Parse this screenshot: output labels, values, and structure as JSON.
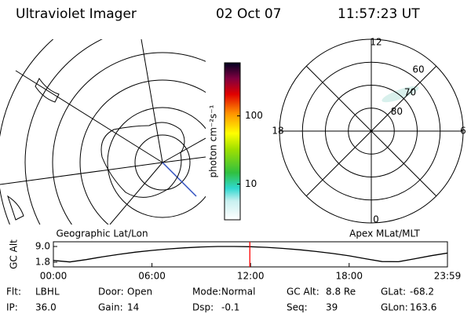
{
  "header": {
    "title": "Ultraviolet Imager",
    "date": "02 Oct 07",
    "time": "11:57:23 UT"
  },
  "geo_panel": {
    "label": "Geographic Lat/Lon"
  },
  "colorbar": {
    "unit_label": "photon cm⁻²s⁻¹",
    "log_scale": true,
    "clim": [
      3,
      600
    ],
    "ticks": [
      10,
      100
    ]
  },
  "mlt_panel": {
    "label": "Apex MLat/MLT",
    "rlim": [
      90,
      50
    ],
    "lat_rings": [
      60,
      70,
      80
    ],
    "mlt_labels": [
      12,
      18,
      6,
      0
    ]
  },
  "altitude_plot": {
    "type": "line",
    "y_label": "GC Alt",
    "color": "#000000",
    "marker_color": "#ff0000",
    "marker_x": 11.956,
    "x": [
      0,
      1,
      2,
      3,
      4,
      5,
      6,
      7,
      8,
      9,
      10,
      11,
      12,
      13,
      14,
      15,
      16,
      17,
      18,
      19,
      20,
      21,
      22,
      23,
      24
    ],
    "values": [
      2.6,
      1.9,
      3.0,
      4.3,
      5.4,
      6.4,
      7.2,
      7.9,
      8.4,
      8.8,
      9.0,
      9.0,
      8.9,
      8.6,
      8.1,
      7.5,
      6.7,
      5.8,
      4.7,
      3.4,
      2.1,
      2.0,
      3.4,
      4.8,
      6.0
    ],
    "xlim": [
      0,
      23.983
    ],
    "ylim": [
      1.8,
      9.0
    ],
    "xticks": [
      {
        "value": 0,
        "label": "00:00"
      },
      {
        "value": 6,
        "label": "06:00"
      },
      {
        "value": 12,
        "label": "12:00"
      },
      {
        "value": 18,
        "label": "18:00"
      },
      {
        "value": 23.983,
        "label": "23:59"
      }
    ],
    "yticks": [
      {
        "value": 9.0,
        "label": "9.0"
      },
      1.8
    ]
  },
  "status": [
    [
      {
        "label": "Flt:",
        "value": "LBHL"
      },
      {
        "label": "Door:",
        "value": "Open"
      },
      {
        "label": "Mode:",
        "value": "Normal"
      },
      {
        "label": "GC Alt:",
        "value": "8.8 Re"
      },
      {
        "label": "GLat:",
        "value": "-68.2"
      }
    ],
    [
      {
        "label": "IP:",
        "value": "36.0"
      },
      {
        "label": "Gain:",
        "value": "14"
      },
      {
        "label": "Dsp:",
        "value": "-0.1"
      },
      {
        "label": "Seq:",
        "value": "39"
      },
      {
        "label": "GLon:",
        "value": "163.6"
      }
    ]
  ]
}
